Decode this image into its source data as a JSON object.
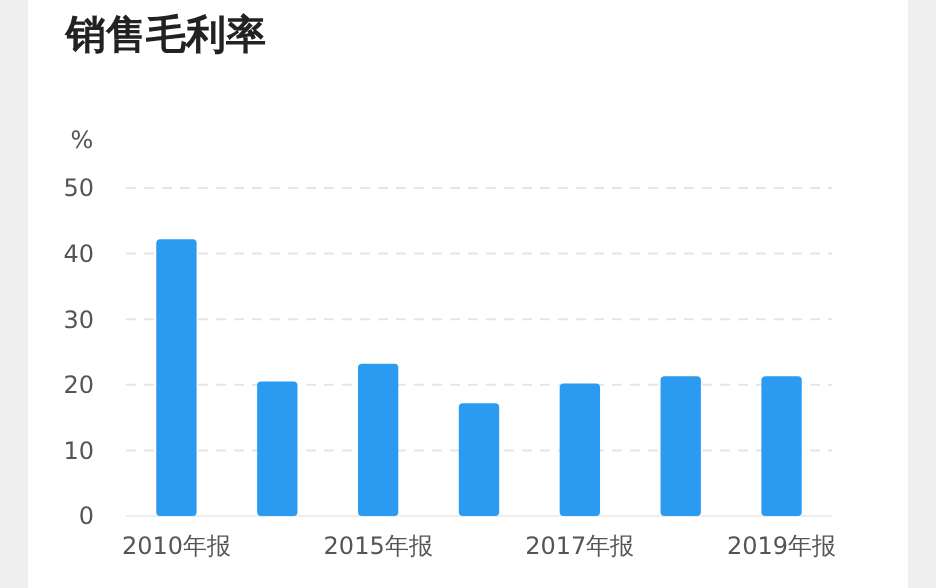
{
  "chart_data": {
    "type": "bar",
    "title": "销售毛利率",
    "ylabel": "%",
    "categories": [
      "2010年报",
      null,
      "2015年报",
      null,
      "2017年报",
      null,
      "2019年报"
    ],
    "values": [
      42.2,
      20.5,
      23.2,
      17.2,
      20.2,
      21.3,
      21.3
    ],
    "color": "#2a9bf0",
    "ylim": [
      0,
      50
    ],
    "yticks": [
      0,
      10,
      20,
      30,
      40,
      50
    ],
    "grid": "y"
  }
}
